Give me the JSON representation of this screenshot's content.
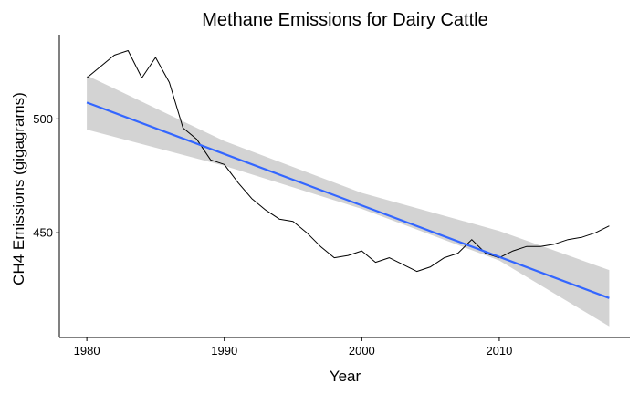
{
  "chart_data": {
    "type": "line",
    "title": "Methane Emissions for Dairy Cattle",
    "xlabel": "Year",
    "ylabel": "CH4 Emissions (gigagrams)",
    "xlim": [
      1978,
      2019.5
    ],
    "ylim": [
      404,
      537
    ],
    "x_ticks": [
      1980,
      1990,
      2000,
      2010
    ],
    "y_ticks": [
      450,
      500
    ],
    "grid": false,
    "legend": "none",
    "series": [
      {
        "kind": "observed",
        "color": "#000000",
        "x": [
          1980,
          1981,
          1982,
          1983,
          1984,
          1985,
          1986,
          1987,
          1988,
          1989,
          1990,
          1991,
          1992,
          1993,
          1994,
          1995,
          1996,
          1997,
          1998,
          1999,
          2000,
          2001,
          2002,
          2003,
          2004,
          2005,
          2006,
          2007,
          2008,
          2009,
          2010,
          2011,
          2012,
          2013,
          2014,
          2015,
          2016,
          2017,
          2018
        ],
        "y": [
          518,
          523,
          528,
          530,
          518,
          527,
          516,
          496,
          491,
          482,
          480,
          472,
          465,
          460,
          456,
          455,
          450,
          444,
          439,
          440,
          442,
          437,
          439,
          436,
          433,
          435,
          439,
          441,
          447,
          441,
          439,
          442,
          444,
          444,
          445,
          447,
          448,
          450,
          453
        ]
      },
      {
        "kind": "linear-fit",
        "color": "#3366FF",
        "x": [
          1980,
          2018
        ],
        "y": [
          507.2,
          421.3
        ]
      }
    ],
    "confidence_band": {
      "color": "#d3d3d3",
      "x": [
        1980,
        1990,
        2000,
        2010,
        2018
      ],
      "lower": [
        495.3,
        479.4,
        460.5,
        437.8,
        408.9
      ],
      "upper": [
        519.1,
        490.3,
        467.5,
        450.8,
        433.6
      ]
    }
  }
}
